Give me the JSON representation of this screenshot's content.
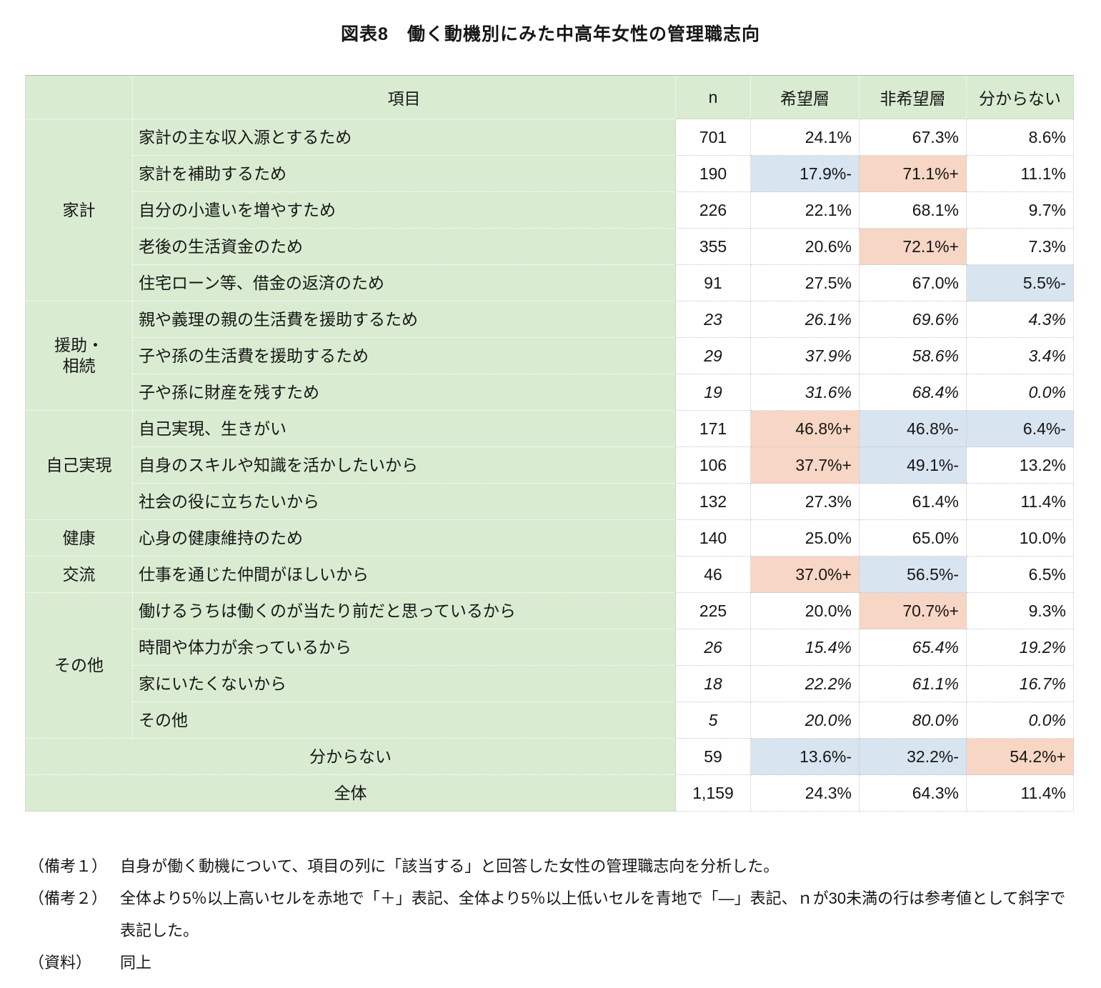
{
  "title": "図表8　働く動機別にみた中高年女性の管理職志向",
  "colors": {
    "cell_green": "#d9ecd2",
    "highlight_red": "#f8d6c5",
    "highlight_blue": "#d8e4f0"
  },
  "table": {
    "header": {
      "corner": "",
      "item": "項目",
      "n": "n",
      "hope": "希望層",
      "nohope": "非希望層",
      "dk": "分からない"
    },
    "rows": [
      {
        "group": "家計",
        "group_span": 5,
        "item": "家計の主な収入源とするため",
        "n": "701",
        "italic": false,
        "cells": [
          {
            "v": "24.1%"
          },
          {
            "v": "67.3%"
          },
          {
            "v": "8.6%"
          }
        ]
      },
      {
        "item": "家計を補助するため",
        "n": "190",
        "italic": false,
        "cells": [
          {
            "v": "17.9%-",
            "hl": "blue"
          },
          {
            "v": "71.1%+",
            "hl": "red"
          },
          {
            "v": "11.1%"
          }
        ]
      },
      {
        "item": "自分の小遣いを増やすため",
        "n": "226",
        "italic": false,
        "cells": [
          {
            "v": "22.1%"
          },
          {
            "v": "68.1%"
          },
          {
            "v": "9.7%"
          }
        ]
      },
      {
        "item": "老後の生活資金のため",
        "n": "355",
        "italic": false,
        "cells": [
          {
            "v": "20.6%"
          },
          {
            "v": "72.1%+",
            "hl": "red"
          },
          {
            "v": "7.3%"
          }
        ]
      },
      {
        "item": "住宅ローン等、借金の返済のため",
        "n": "91",
        "italic": false,
        "cells": [
          {
            "v": "27.5%"
          },
          {
            "v": "67.0%"
          },
          {
            "v": "5.5%-",
            "hl": "blue"
          }
        ]
      },
      {
        "group": "援助・\n相続",
        "group_span": 3,
        "item": "親や義理の親の生活費を援助するため",
        "n": "23",
        "italic": true,
        "cells": [
          {
            "v": "26.1%"
          },
          {
            "v": "69.6%"
          },
          {
            "v": "4.3%"
          }
        ]
      },
      {
        "item": "子や孫の生活費を援助するため",
        "n": "29",
        "italic": true,
        "cells": [
          {
            "v": "37.9%"
          },
          {
            "v": "58.6%"
          },
          {
            "v": "3.4%"
          }
        ]
      },
      {
        "item": "子や孫に財産を残すため",
        "n": "19",
        "italic": true,
        "cells": [
          {
            "v": "31.6%"
          },
          {
            "v": "68.4%"
          },
          {
            "v": "0.0%"
          }
        ]
      },
      {
        "group": "自己実現",
        "group_span": 3,
        "item": "自己実現、生きがい",
        "n": "171",
        "italic": false,
        "cells": [
          {
            "v": "46.8%+",
            "hl": "red"
          },
          {
            "v": "46.8%-",
            "hl": "blue"
          },
          {
            "v": "6.4%-",
            "hl": "blue"
          }
        ]
      },
      {
        "item": "自身のスキルや知識を活かしたいから",
        "n": "106",
        "italic": false,
        "cells": [
          {
            "v": "37.7%+",
            "hl": "red"
          },
          {
            "v": "49.1%-",
            "hl": "blue"
          },
          {
            "v": "13.2%"
          }
        ]
      },
      {
        "item": "社会の役に立ちたいから",
        "n": "132",
        "italic": false,
        "cells": [
          {
            "v": "27.3%"
          },
          {
            "v": "61.4%"
          },
          {
            "v": "11.4%"
          }
        ]
      },
      {
        "group": "健康",
        "group_span": 1,
        "item": "心身の健康維持のため",
        "n": "140",
        "italic": false,
        "cells": [
          {
            "v": "25.0%"
          },
          {
            "v": "65.0%"
          },
          {
            "v": "10.0%"
          }
        ]
      },
      {
        "group": "交流",
        "group_span": 1,
        "item": "仕事を通じた仲間がほしいから",
        "n": "46",
        "italic": false,
        "cells": [
          {
            "v": "37.0%+",
            "hl": "red"
          },
          {
            "v": "56.5%-",
            "hl": "blue"
          },
          {
            "v": "6.5%"
          }
        ]
      },
      {
        "group": "その他",
        "group_span": 4,
        "item": "働けるうちは働くのが当たり前だと思っているから",
        "n": "225",
        "italic": false,
        "cells": [
          {
            "v": "20.0%"
          },
          {
            "v": "70.7%+",
            "hl": "red"
          },
          {
            "v": "9.3%"
          }
        ]
      },
      {
        "item": "時間や体力が余っているから",
        "n": "26",
        "italic": true,
        "cells": [
          {
            "v": "15.4%"
          },
          {
            "v": "65.4%"
          },
          {
            "v": "19.2%"
          }
        ]
      },
      {
        "item": "家にいたくないから",
        "n": "18",
        "italic": true,
        "cells": [
          {
            "v": "22.2%"
          },
          {
            "v": "61.1%"
          },
          {
            "v": "16.7%"
          }
        ]
      },
      {
        "item": "その他",
        "n": "5",
        "italic": true,
        "cells": [
          {
            "v": "20.0%"
          },
          {
            "v": "80.0%"
          },
          {
            "v": "0.0%"
          }
        ]
      },
      {
        "full": true,
        "item": "分からない",
        "n": "59",
        "italic": false,
        "cells": [
          {
            "v": "13.6%-",
            "hl": "blue"
          },
          {
            "v": "32.2%-",
            "hl": "blue"
          },
          {
            "v": "54.2%+",
            "hl": "red"
          }
        ]
      },
      {
        "full": true,
        "item": "全体",
        "n": "1,159",
        "italic": false,
        "cells": [
          {
            "v": "24.3%"
          },
          {
            "v": "64.3%"
          },
          {
            "v": "11.4%"
          }
        ]
      }
    ]
  },
  "notes": {
    "note1_label": "（備考１）",
    "note1_text": "自身が働く動機について、項目の列に「該当する」と回答した女性の管理職志向を分析した。",
    "note2_label": "（備考２）",
    "note2_text": "全体より5％以上高いセルを赤地で「＋」表記、全体より5％以上低いセルを青地で「―」表記、ｎが30未満の行は参考値として斜字で表記した。",
    "source_label": "（資料）",
    "source_text": "同上"
  }
}
